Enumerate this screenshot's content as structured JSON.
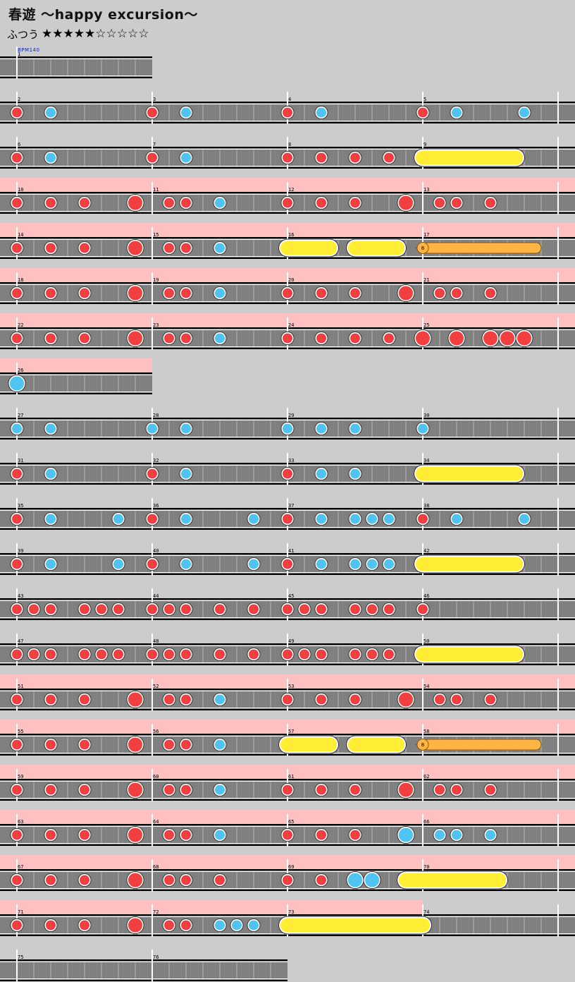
{
  "song": {
    "title": "春遊 ～happy excursion～",
    "difficulty": "ふつう",
    "level": 5,
    "level_max": 10,
    "bpm_label": "BPM140"
  },
  "colors": {
    "background": "#cccccc",
    "lane": "#808080",
    "gogo": "#ffc0c0",
    "don": "#f24040",
    "ka": "#4fc3f2",
    "drumroll": "#ffee33",
    "balloon": "#ffb444"
  },
  "chart_data": {
    "type": "table",
    "rows": [
      {
        "measures": [
          1
        ],
        "gogo": false,
        "notes": []
      },
      {
        "measures": [
          2,
          3,
          4,
          5
        ],
        "gogo": false,
        "notes": [
          {
            "t": "d",
            "b": 0
          },
          {
            "t": "k",
            "b": 2
          },
          {
            "t": "d",
            "b": 8
          },
          {
            "t": "k",
            "b": 10
          },
          {
            "t": "d",
            "b": 16
          },
          {
            "t": "k",
            "b": 18
          },
          {
            "t": "d",
            "b": 24
          },
          {
            "t": "k",
            "b": 26
          },
          {
            "t": "k",
            "b": 30
          }
        ]
      },
      {
        "measures": [
          6,
          7,
          8,
          9
        ],
        "gogo": false,
        "notes": [
          {
            "t": "d",
            "b": 0
          },
          {
            "t": "k",
            "b": 2
          },
          {
            "t": "d",
            "b": 8
          },
          {
            "t": "k",
            "b": 10
          },
          {
            "t": "d",
            "b": 16
          },
          {
            "t": "d",
            "b": 18
          },
          {
            "t": "d",
            "b": 20
          },
          {
            "t": "d",
            "b": 22
          },
          {
            "t": "R",
            "b": 24,
            "e": 29.5
          }
        ]
      },
      {
        "measures": [
          10,
          11,
          12,
          13
        ],
        "gogo": true,
        "notes": [
          {
            "t": "d",
            "b": 0
          },
          {
            "t": "d",
            "b": 2
          },
          {
            "t": "d",
            "b": 4
          },
          {
            "t": "D",
            "b": 7
          },
          {
            "t": "d",
            "b": 9
          },
          {
            "t": "d",
            "b": 10
          },
          {
            "t": "k",
            "b": 12
          },
          {
            "t": "d",
            "b": 16
          },
          {
            "t": "d",
            "b": 18
          },
          {
            "t": "d",
            "b": 20
          },
          {
            "t": "D",
            "b": 23
          },
          {
            "t": "d",
            "b": 25
          },
          {
            "t": "d",
            "b": 26
          },
          {
            "t": "d",
            "b": 28
          }
        ]
      },
      {
        "measures": [
          14,
          15,
          16,
          17
        ],
        "gogo": true,
        "notes": [
          {
            "t": "d",
            "b": 0
          },
          {
            "t": "d",
            "b": 2
          },
          {
            "t": "d",
            "b": 4
          },
          {
            "t": "D",
            "b": 7
          },
          {
            "t": "d",
            "b": 9
          },
          {
            "t": "d",
            "b": 10
          },
          {
            "t": "k",
            "b": 12
          },
          {
            "t": "R",
            "b": 16,
            "e": 18.5
          },
          {
            "t": "R",
            "b": 20,
            "e": 22.5
          },
          {
            "t": "B",
            "b": 24,
            "e": 31,
            "n": "8"
          }
        ]
      },
      {
        "measures": [
          18,
          19,
          20,
          21
        ],
        "gogo": true,
        "notes": [
          {
            "t": "d",
            "b": 0
          },
          {
            "t": "d",
            "b": 2
          },
          {
            "t": "d",
            "b": 4
          },
          {
            "t": "D",
            "b": 7
          },
          {
            "t": "d",
            "b": 9
          },
          {
            "t": "d",
            "b": 10
          },
          {
            "t": "k",
            "b": 12
          },
          {
            "t": "d",
            "b": 16
          },
          {
            "t": "d",
            "b": 18
          },
          {
            "t": "d",
            "b": 20
          },
          {
            "t": "D",
            "b": 23
          },
          {
            "t": "d",
            "b": 25
          },
          {
            "t": "d",
            "b": 26
          },
          {
            "t": "d",
            "b": 28
          }
        ]
      },
      {
        "measures": [
          22,
          23,
          24,
          25
        ],
        "gogo": true,
        "notes": [
          {
            "t": "d",
            "b": 0
          },
          {
            "t": "d",
            "b": 2
          },
          {
            "t": "d",
            "b": 4
          },
          {
            "t": "D",
            "b": 7
          },
          {
            "t": "d",
            "b": 9
          },
          {
            "t": "d",
            "b": 10
          },
          {
            "t": "k",
            "b": 12
          },
          {
            "t": "d",
            "b": 16
          },
          {
            "t": "d",
            "b": 18
          },
          {
            "t": "d",
            "b": 20
          },
          {
            "t": "d",
            "b": 22
          },
          {
            "t": "D",
            "b": 24
          },
          {
            "t": "D",
            "b": 26
          },
          {
            "t": "D",
            "b": 28
          },
          {
            "t": "D",
            "b": 29
          },
          {
            "t": "D",
            "b": 30
          }
        ]
      },
      {
        "measures": [
          26
        ],
        "gogo": true,
        "notes": [
          {
            "t": "K",
            "b": 0
          }
        ]
      },
      {
        "measures": [
          27,
          28,
          29,
          30
        ],
        "gogo": false,
        "notes": [
          {
            "t": "k",
            "b": 0
          },
          {
            "t": "k",
            "b": 2
          },
          {
            "t": "k",
            "b": 8
          },
          {
            "t": "k",
            "b": 10
          },
          {
            "t": "k",
            "b": 16
          },
          {
            "t": "k",
            "b": 18
          },
          {
            "t": "k",
            "b": 20
          },
          {
            "t": "k",
            "b": 24
          }
        ]
      },
      {
        "measures": [
          31,
          32,
          33,
          34
        ],
        "gogo": false,
        "notes": [
          {
            "t": "d",
            "b": 0
          },
          {
            "t": "k",
            "b": 2
          },
          {
            "t": "d",
            "b": 8
          },
          {
            "t": "k",
            "b": 10
          },
          {
            "t": "d",
            "b": 16
          },
          {
            "t": "k",
            "b": 18
          },
          {
            "t": "k",
            "b": 20
          },
          {
            "t": "R",
            "b": 24,
            "e": 29.5
          }
        ]
      },
      {
        "measures": [
          35,
          36,
          37,
          38
        ],
        "gogo": false,
        "notes": [
          {
            "t": "d",
            "b": 0
          },
          {
            "t": "k",
            "b": 2
          },
          {
            "t": "k",
            "b": 6
          },
          {
            "t": "d",
            "b": 8
          },
          {
            "t": "k",
            "b": 10
          },
          {
            "t": "k",
            "b": 14
          },
          {
            "t": "d",
            "b": 16
          },
          {
            "t": "k",
            "b": 18
          },
          {
            "t": "k",
            "b": 20
          },
          {
            "t": "k",
            "b": 21
          },
          {
            "t": "k",
            "b": 22
          },
          {
            "t": "d",
            "b": 24
          },
          {
            "t": "k",
            "b": 26
          },
          {
            "t": "k",
            "b": 30
          }
        ]
      },
      {
        "measures": [
          39,
          40,
          41,
          42
        ],
        "gogo": false,
        "notes": [
          {
            "t": "d",
            "b": 0
          },
          {
            "t": "k",
            "b": 2
          },
          {
            "t": "k",
            "b": 6
          },
          {
            "t": "d",
            "b": 8
          },
          {
            "t": "k",
            "b": 10
          },
          {
            "t": "k",
            "b": 14
          },
          {
            "t": "d",
            "b": 16
          },
          {
            "t": "k",
            "b": 18
          },
          {
            "t": "k",
            "b": 20
          },
          {
            "t": "k",
            "b": 21
          },
          {
            "t": "k",
            "b": 22
          },
          {
            "t": "R",
            "b": 24,
            "e": 29.5
          }
        ]
      },
      {
        "measures": [
          43,
          44,
          45,
          46
        ],
        "gogo": false,
        "notes": [
          {
            "t": "d",
            "b": 0
          },
          {
            "t": "d",
            "b": 1
          },
          {
            "t": "d",
            "b": 2
          },
          {
            "t": "d",
            "b": 4
          },
          {
            "t": "d",
            "b": 5
          },
          {
            "t": "d",
            "b": 6
          },
          {
            "t": "d",
            "b": 8
          },
          {
            "t": "d",
            "b": 9
          },
          {
            "t": "d",
            "b": 10
          },
          {
            "t": "d",
            "b": 12
          },
          {
            "t": "d",
            "b": 14
          },
          {
            "t": "d",
            "b": 16
          },
          {
            "t": "d",
            "b": 17
          },
          {
            "t": "d",
            "b": 18
          },
          {
            "t": "d",
            "b": 20
          },
          {
            "t": "d",
            "b": 21
          },
          {
            "t": "d",
            "b": 22
          },
          {
            "t": "d",
            "b": 24
          }
        ]
      },
      {
        "measures": [
          47,
          48,
          49,
          50
        ],
        "gogo": false,
        "notes": [
          {
            "t": "d",
            "b": 0
          },
          {
            "t": "d",
            "b": 1
          },
          {
            "t": "d",
            "b": 2
          },
          {
            "t": "d",
            "b": 4
          },
          {
            "t": "d",
            "b": 5
          },
          {
            "t": "d",
            "b": 6
          },
          {
            "t": "d",
            "b": 8
          },
          {
            "t": "d",
            "b": 9
          },
          {
            "t": "d",
            "b": 10
          },
          {
            "t": "d",
            "b": 12
          },
          {
            "t": "d",
            "b": 14
          },
          {
            "t": "d",
            "b": 16
          },
          {
            "t": "d",
            "b": 17
          },
          {
            "t": "d",
            "b": 18
          },
          {
            "t": "d",
            "b": 20
          },
          {
            "t": "d",
            "b": 21
          },
          {
            "t": "d",
            "b": 22
          },
          {
            "t": "R",
            "b": 24,
            "e": 29.5
          }
        ]
      },
      {
        "measures": [
          51,
          52,
          53,
          54
        ],
        "gogo": true,
        "notes": [
          {
            "t": "d",
            "b": 0
          },
          {
            "t": "d",
            "b": 2
          },
          {
            "t": "d",
            "b": 4
          },
          {
            "t": "D",
            "b": 7
          },
          {
            "t": "d",
            "b": 9
          },
          {
            "t": "d",
            "b": 10
          },
          {
            "t": "k",
            "b": 12
          },
          {
            "t": "d",
            "b": 16
          },
          {
            "t": "d",
            "b": 18
          },
          {
            "t": "d",
            "b": 20
          },
          {
            "t": "D",
            "b": 23
          },
          {
            "t": "d",
            "b": 25
          },
          {
            "t": "d",
            "b": 26
          },
          {
            "t": "d",
            "b": 28
          }
        ]
      },
      {
        "measures": [
          55,
          56,
          57,
          58
        ],
        "gogo": true,
        "notes": [
          {
            "t": "d",
            "b": 0
          },
          {
            "t": "d",
            "b": 2
          },
          {
            "t": "d",
            "b": 4
          },
          {
            "t": "D",
            "b": 7
          },
          {
            "t": "d",
            "b": 9
          },
          {
            "t": "d",
            "b": 10
          },
          {
            "t": "k",
            "b": 12
          },
          {
            "t": "R",
            "b": 16,
            "e": 18.5
          },
          {
            "t": "R",
            "b": 20,
            "e": 22.5
          },
          {
            "t": "B",
            "b": 24,
            "e": 31,
            "n": "8"
          }
        ]
      },
      {
        "measures": [
          59,
          60,
          61,
          62
        ],
        "gogo": true,
        "notes": [
          {
            "t": "d",
            "b": 0
          },
          {
            "t": "d",
            "b": 2
          },
          {
            "t": "d",
            "b": 4
          },
          {
            "t": "D",
            "b": 7
          },
          {
            "t": "d",
            "b": 9
          },
          {
            "t": "d",
            "b": 10
          },
          {
            "t": "k",
            "b": 12
          },
          {
            "t": "d",
            "b": 16
          },
          {
            "t": "d",
            "b": 18
          },
          {
            "t": "d",
            "b": 20
          },
          {
            "t": "D",
            "b": 23
          },
          {
            "t": "d",
            "b": 25
          },
          {
            "t": "d",
            "b": 26
          },
          {
            "t": "d",
            "b": 28
          }
        ]
      },
      {
        "measures": [
          63,
          64,
          65,
          66
        ],
        "gogo": true,
        "notes": [
          {
            "t": "d",
            "b": 0
          },
          {
            "t": "d",
            "b": 2
          },
          {
            "t": "d",
            "b": 4
          },
          {
            "t": "D",
            "b": 7
          },
          {
            "t": "d",
            "b": 9
          },
          {
            "t": "d",
            "b": 10
          },
          {
            "t": "k",
            "b": 12
          },
          {
            "t": "d",
            "b": 16
          },
          {
            "t": "d",
            "b": 18
          },
          {
            "t": "d",
            "b": 20
          },
          {
            "t": "K",
            "b": 23
          },
          {
            "t": "k",
            "b": 25
          },
          {
            "t": "k",
            "b": 26
          },
          {
            "t": "k",
            "b": 28
          }
        ]
      },
      {
        "measures": [
          67,
          68,
          69,
          70
        ],
        "gogo": true,
        "notes": [
          {
            "t": "d",
            "b": 0
          },
          {
            "t": "d",
            "b": 2
          },
          {
            "t": "d",
            "b": 4
          },
          {
            "t": "D",
            "b": 7
          },
          {
            "t": "d",
            "b": 9
          },
          {
            "t": "d",
            "b": 10
          },
          {
            "t": "d",
            "b": 12
          },
          {
            "t": "d",
            "b": 16
          },
          {
            "t": "d",
            "b": 18
          },
          {
            "t": "K",
            "b": 20
          },
          {
            "t": "K",
            "b": 21
          },
          {
            "t": "R",
            "b": 23,
            "e": 28.5
          }
        ]
      },
      {
        "measures": [
          71,
          72,
          73,
          74
        ],
        "gogo": true,
        "gogo_end": 24,
        "notes": [
          {
            "t": "d",
            "b": 0
          },
          {
            "t": "d",
            "b": 2
          },
          {
            "t": "d",
            "b": 4
          },
          {
            "t": "D",
            "b": 7
          },
          {
            "t": "d",
            "b": 9
          },
          {
            "t": "d",
            "b": 10
          },
          {
            "t": "k",
            "b": 12
          },
          {
            "t": "k",
            "b": 13
          },
          {
            "t": "k",
            "b": 14
          },
          {
            "t": "R",
            "b": 16,
            "e": 24
          }
        ]
      },
      {
        "measures": [
          75,
          76
        ],
        "gogo": false,
        "notes": []
      }
    ]
  }
}
